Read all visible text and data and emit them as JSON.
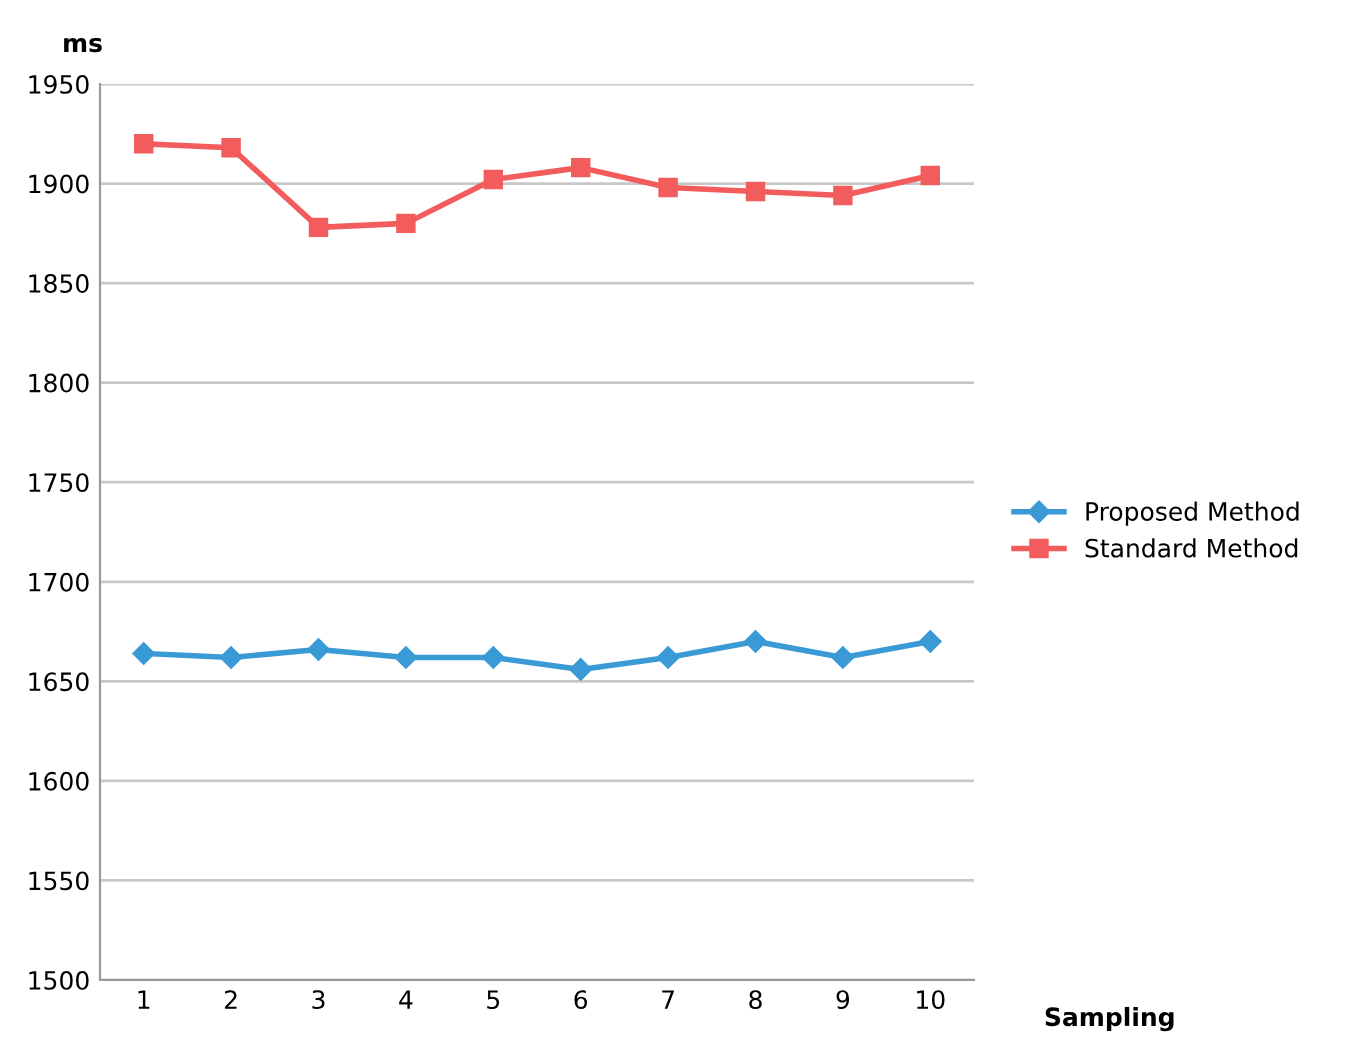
{
  "chart_data": {
    "type": "line",
    "xlabel": "Sampling",
    "ylabel": "ms",
    "categories": [
      "1",
      "2",
      "3",
      "4",
      "5",
      "6",
      "7",
      "8",
      "9",
      "10"
    ],
    "series": [
      {
        "name": "Proposed Method",
        "color": "#3a9ad6",
        "marker": "diamond",
        "values": [
          1664,
          1662,
          1666,
          1662,
          1662,
          1656,
          1662,
          1670,
          1662,
          1670
        ]
      },
      {
        "name": "Standard Method",
        "color": "#f25c5c",
        "marker": "square",
        "values": [
          1920,
          1918,
          1878,
          1880,
          1902,
          1908,
          1898,
          1896,
          1894,
          1904
        ]
      }
    ],
    "ylim": [
      1500,
      1950
    ],
    "yticks": [
      1500,
      1550,
      1600,
      1650,
      1700,
      1750,
      1800,
      1850,
      1900,
      1950
    ],
    "grid": "y",
    "legend": "right",
    "line_style": "solid"
  }
}
